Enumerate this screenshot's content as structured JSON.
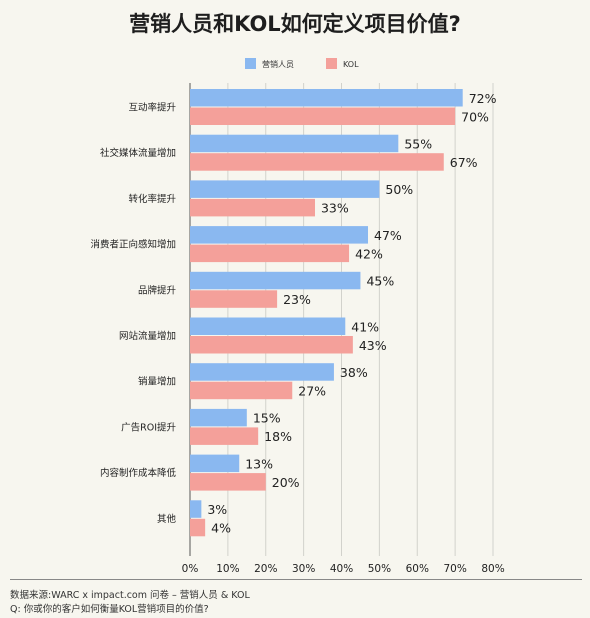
{
  "chart_data": {
    "type": "bar",
    "orientation": "horizontal",
    "title": "营销人员和KOL如何定义项目价值?",
    "categories": [
      "互动率提升",
      "社交媒体流量增加",
      "转化率提升",
      "消费者正向感知增加",
      "品牌提升",
      "网站流量增加",
      "销量增加",
      "广告ROI提升",
      "内容制作成本降低",
      "其他"
    ],
    "series": [
      {
        "name": "营销人员",
        "color": "#8ab8f0",
        "values": [
          72,
          55,
          50,
          47,
          45,
          41,
          38,
          15,
          13,
          3
        ]
      },
      {
        "name": "KOL",
        "color": "#f4a09a",
        "values": [
          70,
          67,
          33,
          42,
          23,
          43,
          27,
          18,
          20,
          4
        ]
      }
    ],
    "xlim": [
      0,
      80
    ],
    "xticks": [
      "0%",
      "10%",
      "20%",
      "30%",
      "40%",
      "50%",
      "60%",
      "70%",
      "80%"
    ],
    "value_suffix": "%",
    "grid": "vertical",
    "legend": "top-center"
  },
  "footer": {
    "source": "数据来源:WARC x impact.com 问卷 – 营销人员 & KOL",
    "question": "Q: 你或你的客户如何衡量KOL营销项目的价值?"
  }
}
